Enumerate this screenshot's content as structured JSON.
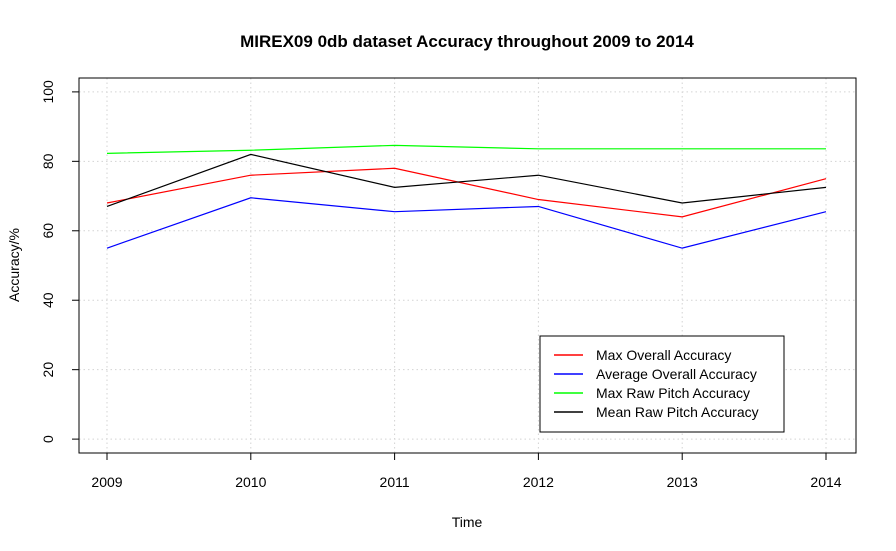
{
  "chart_data": {
    "type": "line",
    "title": "MIREX09 0db dataset Accuracy throughout 2009 to 2014",
    "xlabel": "Time",
    "ylabel": "Accuracy/%",
    "x": [
      "2009",
      "2010",
      "2011",
      "2012",
      "2013",
      "2014"
    ],
    "yticks": [
      0,
      20,
      40,
      60,
      80,
      100
    ],
    "ylim": [
      -4,
      104
    ],
    "grid": true,
    "legend_position": "bottom-right",
    "series": [
      {
        "name": "Max Overall Accuracy",
        "color": "#ff0000",
        "values": [
          68.0,
          76.0,
          78.0,
          69.0,
          64.0,
          75.0
        ]
      },
      {
        "name": "Average Overall Accuracy",
        "color": "#0000ff",
        "values": [
          55.0,
          69.5,
          65.5,
          67.0,
          55.0,
          65.5
        ]
      },
      {
        "name": "Max Raw Pitch Accuracy",
        "color": "#00ff00",
        "values": [
          82.3,
          83.2,
          84.6,
          83.6,
          83.6,
          83.6
        ]
      },
      {
        "name": "Mean Raw Pitch Accuracy",
        "color": "#000000",
        "values": [
          67.0,
          82.0,
          72.5,
          76.0,
          68.0,
          72.5
        ]
      }
    ]
  }
}
